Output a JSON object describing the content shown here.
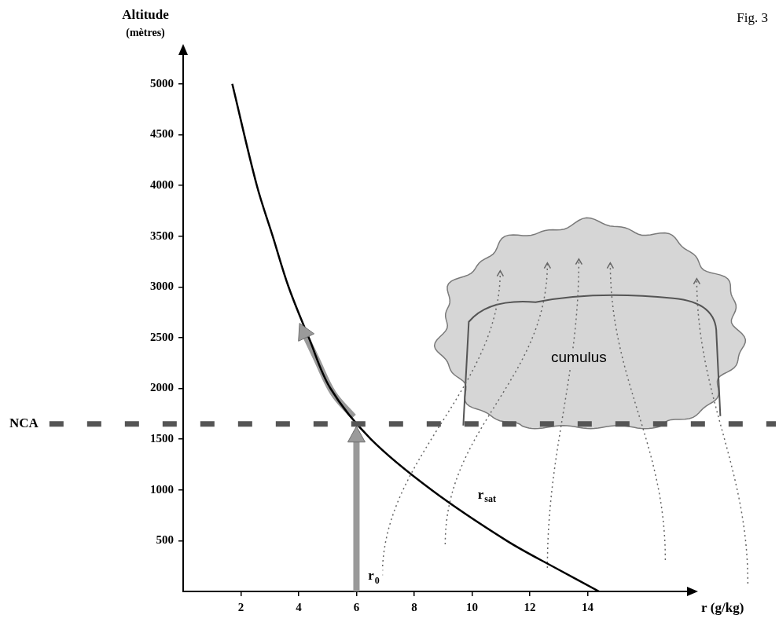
{
  "chart_data": {
    "type": "line",
    "title": "Fig. 3",
    "x_label": "r (g/kg)",
    "y_label": "Altitude (mètres)",
    "xlim": [
      0,
      17.5
    ],
    "xticks": [
      2,
      4,
      6,
      8,
      10,
      12,
      14
    ],
    "ylim": [
      0,
      5300
    ],
    "yticks": [
      500,
      1000,
      1500,
      2000,
      2500,
      3000,
      3500,
      4000,
      4500,
      5000
    ],
    "grid": false,
    "series": [
      {
        "color": "#000000",
        "line_style": "solid",
        "x": [
          14.4,
          12.9,
          11.2,
          8.6,
          6.5,
          5.1,
          4.35,
          3.65,
          3.1,
          2.55,
          1.7
        ],
        "values": [
          0,
          230,
          500,
          1000,
          1500,
          2000,
          2500,
          3000,
          3500,
          4000,
          5000
        ]
      },
      {
        "color": "#9a9a9a",
        "line_style": "arrow",
        "x": [
          6,
          6
        ],
        "values": [
          0,
          1580
        ]
      },
      {
        "color": "#9a9a9a",
        "line_style": "arrow",
        "x": [
          5.9,
          5.2,
          4.6,
          4.1
        ],
        "values": [
          1720,
          1950,
          2300,
          2600
        ]
      }
    ],
    "annotations": [
      {
        "text": "NCA",
        "y": 1650,
        "line_style": "dashed"
      },
      {
        "text": "r",
        "subscript": "sat",
        "x": 10.2,
        "y": 950
      },
      {
        "text": "r",
        "subscript": "0",
        "x": 6.4,
        "y": 150
      },
      {
        "text": "cumulus",
        "x": 13.7,
        "y": 2300,
        "marker": "cloud"
      }
    ]
  }
}
